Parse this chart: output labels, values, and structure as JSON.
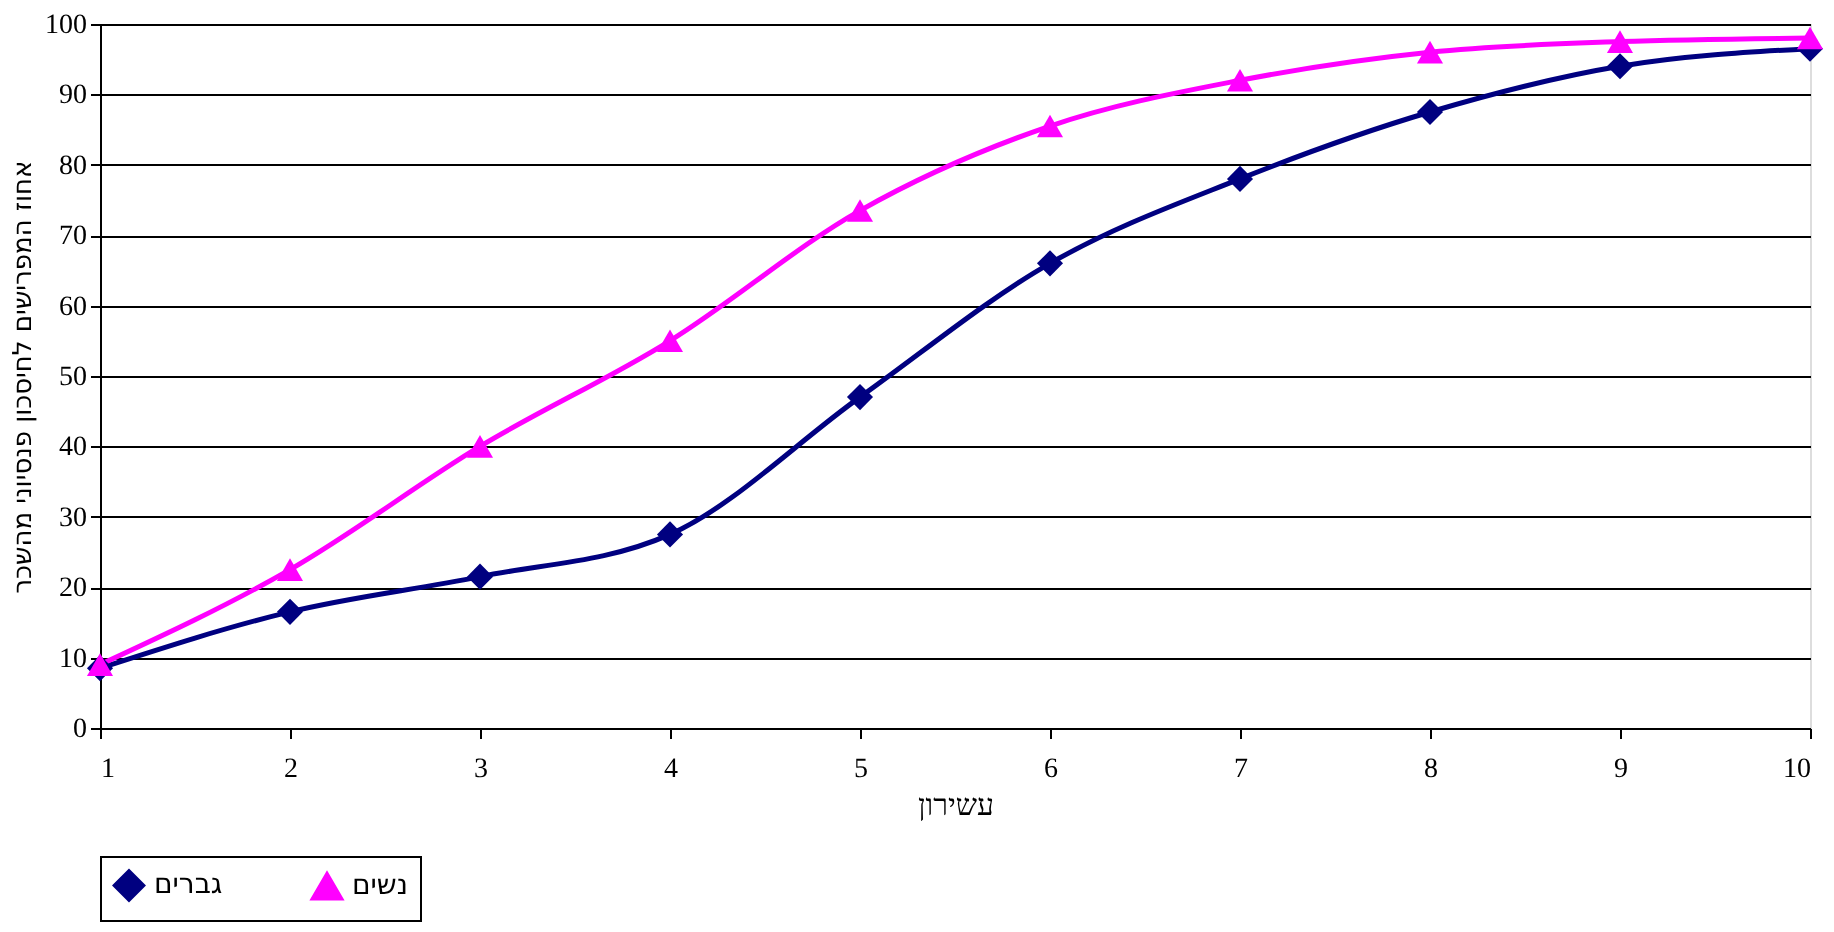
{
  "chart_data": {
    "type": "line",
    "xlabel": "עשירון",
    "ylabel": "אחוז המפרישים לחיסכון פנסיוני מהשכר",
    "x": [
      1,
      2,
      3,
      4,
      5,
      6,
      7,
      8,
      9,
      10
    ],
    "series": [
      {
        "name": "גברים",
        "color": "#000080",
        "marker": "diamond",
        "values": [
          8.5,
          16.5,
          21.5,
          27.5,
          47,
          66,
          78,
          87.5,
          94,
          96.5
        ]
      },
      {
        "name": "נשים",
        "color": "#ff00ff",
        "marker": "triangle",
        "values": [
          9,
          22.5,
          40,
          55,
          73.5,
          85.5,
          92,
          96,
          97.5,
          98
        ]
      }
    ],
    "xlim": [
      1,
      10
    ],
    "xticks": [
      1,
      2,
      3,
      4,
      5,
      6,
      7,
      8,
      9,
      10
    ],
    "ylim": [
      0,
      100
    ],
    "yticks": [
      0,
      10,
      20,
      30,
      40,
      50,
      60,
      70,
      80,
      90,
      100
    ],
    "grid": "y",
    "legend": "bottom",
    "line_style": "solid"
  }
}
